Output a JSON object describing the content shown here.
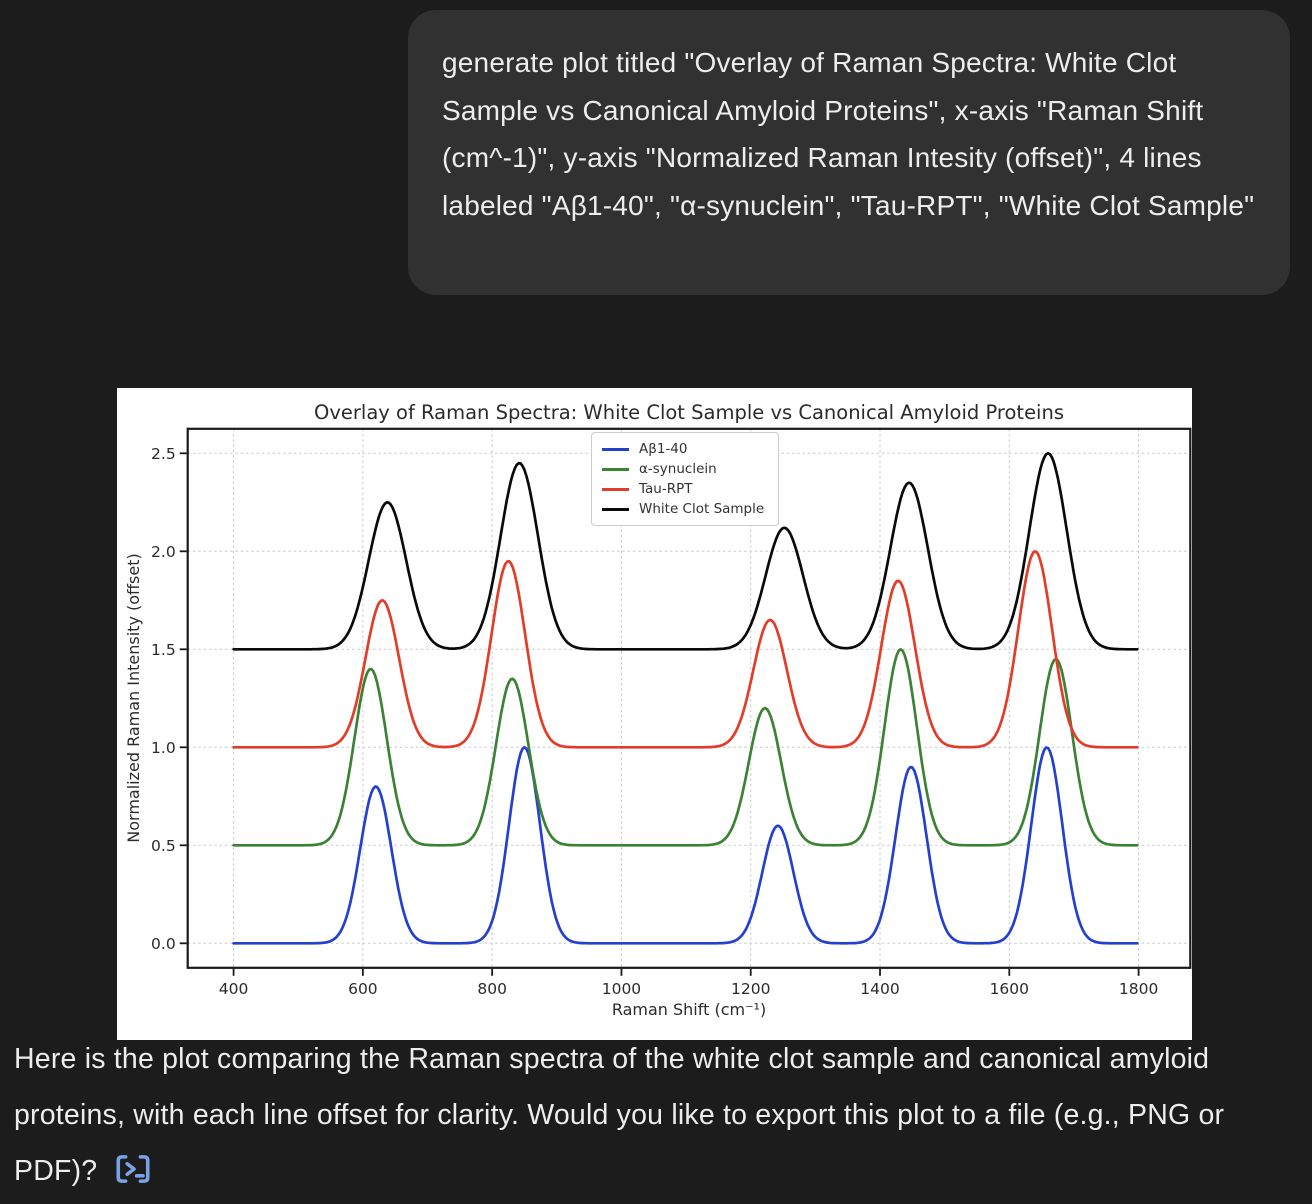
{
  "theme": {
    "page_bg": "#1c1c1c",
    "bubble_bg": "#313131",
    "text_color": "#ededed",
    "figure_bg": "#ffffff",
    "terminal_icon_color": "#7aa3e6"
  },
  "chat": {
    "user_message": "generate plot titled \"Overlay of Raman Spectra: White Clot Sample vs Canonical Amyloid Proteins\", x-axis \"Raman Shift (cm^-1)\", y-axis \"Normalized Raman Intesity (offset)\", 4 lines labeled \"Aβ1-40\", \"α-synuclein\", \"Tau-RPT\", \"White Clot Sample\"",
    "assistant_message": "Here is the plot comparing the Raman spectra of the white clot sample and canonical amyloid proteins, with each line offset for clarity. Would you like to export this plot to a file (e.g., PNG or PDF)?"
  },
  "chart_data": {
    "type": "line",
    "title": "Overlay of Raman Spectra: White Clot Sample vs Canonical Amyloid Proteins",
    "xlabel": "Raman Shift (cm⁻¹)",
    "ylabel": "Normalized Raman Intensity (offset)",
    "xlim": [
      329,
      1880
    ],
    "ylim": [
      -0.125,
      2.625
    ],
    "x_range": [
      400,
      1800
    ],
    "xticks": [
      400,
      600,
      800,
      1000,
      1200,
      1400,
      1600,
      1800
    ],
    "yticks": [
      0.0,
      0.5,
      1.0,
      1.5,
      2.0,
      2.5
    ],
    "grid": true,
    "legend_position": "upper center",
    "series": [
      {
        "name": "Aβ1-40",
        "color": "#2440cf",
        "offset": 0.0,
        "sigma": 24,
        "peaks": [
          {
            "center": 620,
            "amplitude": 0.8
          },
          {
            "center": 850,
            "amplitude": 1.0
          },
          {
            "center": 1242,
            "amplitude": 0.6
          },
          {
            "center": 1448,
            "amplitude": 0.9
          },
          {
            "center": 1658,
            "amplitude": 1.0
          }
        ]
      },
      {
        "name": "α-synuclein",
        "color": "#3c8234",
        "offset": 0.5,
        "sigma": 25,
        "peaks": [
          {
            "center": 612,
            "amplitude": 0.9
          },
          {
            "center": 831,
            "amplitude": 0.85
          },
          {
            "center": 1222,
            "amplitude": 0.7
          },
          {
            "center": 1432,
            "amplitude": 1.0
          },
          {
            "center": 1672,
            "amplitude": 0.95
          }
        ]
      },
      {
        "name": "Tau-RPT",
        "color": "#e23d28",
        "offset": 1.0,
        "sigma": 26,
        "peaks": [
          {
            "center": 630,
            "amplitude": 0.75
          },
          {
            "center": 825,
            "amplitude": 0.95
          },
          {
            "center": 1230,
            "amplitude": 0.65
          },
          {
            "center": 1428,
            "amplitude": 0.85
          },
          {
            "center": 1640,
            "amplitude": 1.0
          }
        ]
      },
      {
        "name": "White Clot Sample",
        "color": "#0a0a0a",
        "offset": 1.5,
        "sigma": 29,
        "peaks": [
          {
            "center": 638,
            "amplitude": 0.75
          },
          {
            "center": 842,
            "amplitude": 0.95
          },
          {
            "center": 1252,
            "amplitude": 0.62
          },
          {
            "center": 1445,
            "amplitude": 0.85
          },
          {
            "center": 1660,
            "amplitude": 1.0
          }
        ]
      }
    ]
  }
}
